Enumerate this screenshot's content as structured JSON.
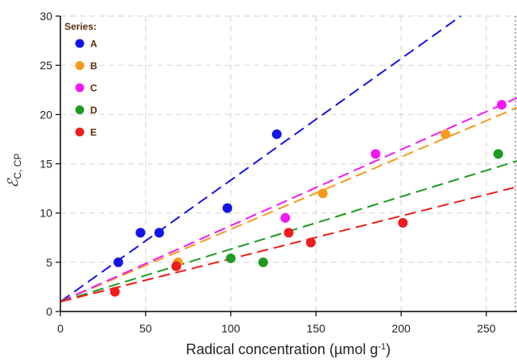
{
  "chart_data": {
    "type": "scatter",
    "xlabel": "Radical concentration (µmol g",
    "xlabel_sup": "-1",
    "xlabel_suffix": ")",
    "ylabel": "ℰ",
    "ylabel_sub": "C, CP",
    "xlim": [
      0,
      268
    ],
    "ylim": [
      0,
      30
    ],
    "xticks": [
      0,
      50,
      100,
      150,
      200,
      250
    ],
    "yticks": [
      0,
      5,
      10,
      15,
      20,
      25,
      30
    ],
    "grid": true,
    "legend": {
      "title": "Series:",
      "position": "top-left"
    },
    "series": [
      {
        "name": "A",
        "color": "#1414e6",
        "points": [
          [
            34,
            5
          ],
          [
            47,
            8
          ],
          [
            58,
            8
          ],
          [
            98,
            10.5
          ],
          [
            127,
            18
          ]
        ],
        "fit": {
          "intercept": 1.0,
          "slope": 0.1234
        }
      },
      {
        "name": "B",
        "color": "#f59a1b",
        "points": [
          [
            69,
            5
          ],
          [
            154,
            12
          ],
          [
            226,
            18
          ]
        ],
        "fit": {
          "intercept": 1.0,
          "slope": 0.0735
        }
      },
      {
        "name": "C",
        "color": "#f21af2",
        "points": [
          [
            132,
            9.5
          ],
          [
            185,
            16
          ],
          [
            259,
            21
          ]
        ],
        "fit": {
          "intercept": 1.0,
          "slope": 0.0772
        }
      },
      {
        "name": "D",
        "color": "#1e9a1e",
        "points": [
          [
            68,
            4.6
          ],
          [
            100,
            5.4
          ],
          [
            119,
            5
          ],
          [
            257,
            16
          ]
        ],
        "fit": {
          "intercept": 1.0,
          "slope": 0.0533
        }
      },
      {
        "name": "E",
        "color": "#f01c1c",
        "points": [
          [
            32,
            2
          ],
          [
            68,
            4.6
          ],
          [
            134,
            8
          ],
          [
            147,
            7
          ],
          [
            201,
            9
          ]
        ],
        "fit": {
          "intercept": 1.0,
          "slope": 0.0435
        }
      }
    ]
  }
}
